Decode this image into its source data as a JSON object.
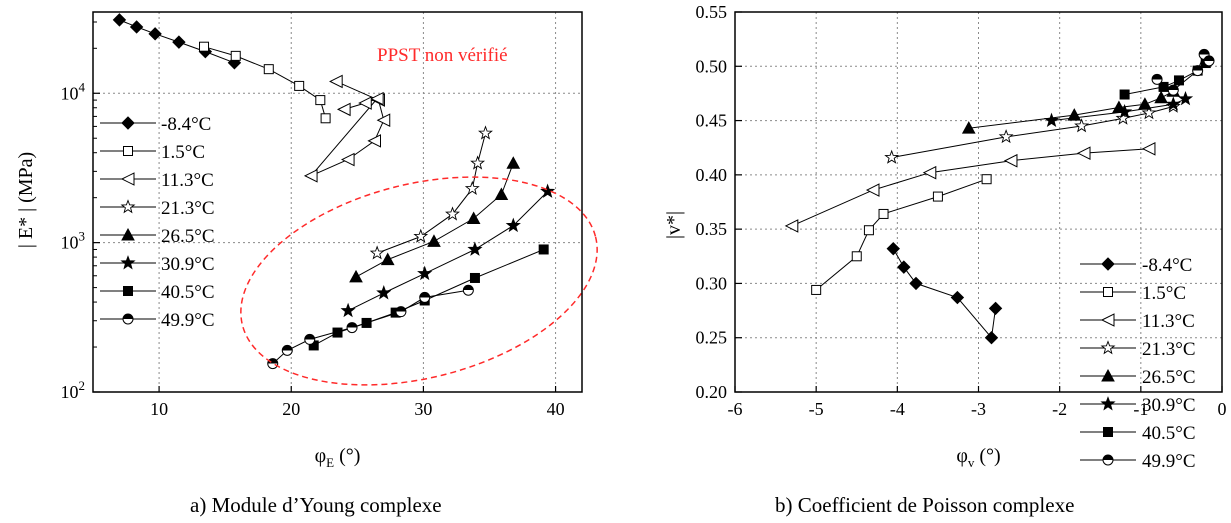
{
  "chart_data": [
    {
      "type": "scatter",
      "caption": "a)   Module d’Young complexe",
      "xlabel_sym": "φ",
      "xlabel_sub": "E",
      "xlabel_unit": " (°)",
      "ylabel": "| E* | (MPa)",
      "xlim": [
        5,
        42
      ],
      "ylim": [
        100,
        35000
      ],
      "yscale": "log",
      "xticks": [
        "10",
        "20",
        "30",
        "40"
      ],
      "yticks": [
        {
          "base": "10",
          "exp": "2",
          "value": 100
        },
        {
          "base": "10",
          "exp": "3",
          "value": 1000
        },
        {
          "base": "10",
          "exp": "4",
          "value": 10000
        }
      ],
      "grid": true,
      "legend_position": "left",
      "annotation": "PPST non vérifié",
      "series": [
        {
          "name": "-8.4°C",
          "marker": "diamond",
          "x": [
            7,
            8.3,
            9.7,
            11.5,
            13.5,
            15.7
          ],
          "y": [
            31000,
            27800,
            25000,
            22000,
            19000,
            16000
          ]
        },
        {
          "name": "1.5°C",
          "marker": "square-open",
          "x": [
            13.4,
            15.8,
            18.3,
            20.6,
            22.2,
            22.6
          ],
          "y": [
            20500,
            17800,
            14500,
            11200,
            9000,
            6800
          ]
        },
        {
          "name": "11.3°C",
          "marker": "triangle-left-open",
          "x": [
            23.4,
            26.6,
            27,
            26.3,
            24.3,
            21.5,
            26.5,
            25.6,
            24
          ],
          "y": [
            12000,
            9000,
            6600,
            4800,
            3600,
            2800,
            9200,
            8600,
            7800
          ]
        },
        {
          "name": "21.3°C",
          "marker": "star-open",
          "x": [
            26.5,
            29.8,
            32.2,
            33.7,
            34.1,
            34.7
          ],
          "y": [
            850,
            1100,
            1550,
            2300,
            3400,
            5400
          ]
        },
        {
          "name": "26.5°C",
          "marker": "triangle-up",
          "x": [
            24.9,
            27.3,
            30.8,
            33.8,
            35.9,
            36.8
          ],
          "y": [
            590,
            770,
            1020,
            1450,
            2100,
            3400
          ]
        },
        {
          "name": "30.9°C",
          "marker": "star",
          "x": [
            24.3,
            27,
            30.1,
            33.9,
            36.8,
            39.4
          ],
          "y": [
            350,
            460,
            620,
            900,
            1300,
            2200
          ]
        },
        {
          "name": "40.5°C",
          "marker": "square",
          "x": [
            21.7,
            23.5,
            25.7,
            27.9,
            30.1,
            33.9,
            39.1
          ],
          "y": [
            205,
            250,
            290,
            340,
            410,
            580,
            900
          ]
        },
        {
          "name": "49.9°C",
          "marker": "circle-half",
          "x": [
            18.6,
            19.7,
            21.4,
            24.6,
            28.3,
            30.1,
            33.4
          ],
          "y": [
            155,
            190,
            225,
            270,
            345,
            430,
            480
          ]
        }
      ]
    },
    {
      "type": "scatter",
      "caption": "b)   Coefficient de Poisson complexe",
      "xlabel_sym": "φ",
      "xlabel_sub": "v",
      "xlabel_unit": " (°)",
      "ylabel": "|v*|",
      "xlim": [
        -6,
        0
      ],
      "ylim": [
        0.2,
        0.55
      ],
      "xticks": [
        "-6",
        "-5",
        "-4",
        "-3",
        "-2",
        "-1",
        "0"
      ],
      "yticks": [
        "0.20",
        "0.25",
        "0.30",
        "0.35",
        "0.40",
        "0.45",
        "0.50",
        "0.55"
      ],
      "grid": true,
      "legend_position": "right",
      "series": [
        {
          "name": "-8.4°C",
          "marker": "diamond",
          "x": [
            -4.05,
            -3.92,
            -3.77,
            -3.26,
            -2.84,
            -2.79
          ],
          "y": [
            0.332,
            0.315,
            0.3,
            0.287,
            0.25,
            0.277
          ]
        },
        {
          "name": "1.5°C",
          "marker": "square-open",
          "x": [
            -5.0,
            -4.5,
            -4.35,
            -4.17,
            -3.5,
            -2.9
          ],
          "y": [
            0.294,
            0.325,
            0.349,
            0.364,
            0.38,
            0.396
          ]
        },
        {
          "name": "11.3°C",
          "marker": "triangle-left-open",
          "x": [
            -5.3,
            -4.3,
            -3.6,
            -2.6,
            -1.7,
            -0.9
          ],
          "y": [
            0.353,
            0.386,
            0.402,
            0.413,
            0.42,
            0.424
          ]
        },
        {
          "name": "21.3°C",
          "marker": "star-open",
          "x": [
            -4.07,
            -2.66,
            -1.73,
            -1.22,
            -0.9,
            -0.6
          ],
          "y": [
            0.416,
            0.435,
            0.445,
            0.452,
            0.457,
            0.463
          ]
        },
        {
          "name": "26.5°C",
          "marker": "triangle-up",
          "x": [
            -3.12,
            -1.82,
            -1.27,
            -0.95,
            -0.75,
            -0.6
          ],
          "y": [
            0.443,
            0.455,
            0.462,
            0.465,
            0.471,
            0.477
          ]
        },
        {
          "name": "30.9°C",
          "marker": "star",
          "x": [
            -2.1,
            -1.2,
            -0.6,
            -0.45
          ],
          "y": [
            0.45,
            0.458,
            0.465,
            0.47
          ]
        },
        {
          "name": "40.5°C",
          "marker": "square",
          "x": [
            -1.2,
            -0.72,
            -0.53,
            -0.3,
            -0.2
          ],
          "y": [
            0.474,
            0.481,
            0.487,
            0.496,
            0.503
          ]
        },
        {
          "name": "49.9°C",
          "marker": "circle-half",
          "x": [
            -0.8,
            -0.6,
            -0.3,
            -0.22,
            -0.16
          ],
          "y": [
            0.488,
            0.478,
            0.496,
            0.511,
            0.505
          ]
        }
      ]
    }
  ]
}
